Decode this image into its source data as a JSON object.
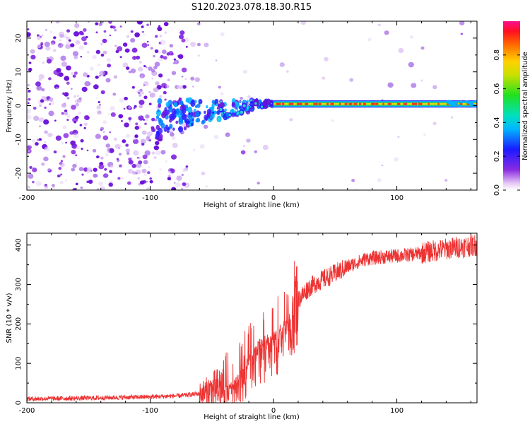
{
  "figure": {
    "title": "S120.2023.078.18.30.R15"
  },
  "chart_data": [
    {
      "type": "heatmap",
      "xlabel": "Height of straight line (km)",
      "ylabel": "Frequency (Hz)",
      "xlim": [
        -200,
        165
      ],
      "ylim": [
        -25,
        25
      ],
      "xticks": [
        -200,
        -100,
        0,
        100
      ],
      "yticks": [
        -20,
        -10,
        0,
        10,
        20
      ],
      "colorbar": {
        "label": "Normalized spectral amplitude",
        "range": [
          0,
          1
        ],
        "ticks": [
          "0.0",
          "0.2",
          "0.4",
          "0.6",
          "0.8"
        ],
        "colormap": "rainbow (white-violet-blue-cyan-green-yellow-red-magenta)"
      },
      "features": {
        "noise_region_km": [
          -200,
          -70
        ],
        "transition_region_km": [
          -100,
          0
        ],
        "carrier_line_start_km": 0,
        "carrier_frequency_hz": 0.5,
        "colors": {
          "noise": "#8a2be2",
          "carrier_core": "#ff3020",
          "carrier_edge": "#28c878"
        }
      }
    },
    {
      "type": "line",
      "xlabel": "Height of straight line (km)",
      "ylabel": "SNR (10 * v/v)",
      "xlim": [
        -200,
        165
      ],
      "ylim": [
        0,
        430
      ],
      "xticks": [
        -200,
        -100,
        0,
        100
      ],
      "yticks": [
        0,
        100,
        200,
        300,
        400
      ],
      "color": "#ee3333",
      "profile": {
        "x": [
          -200,
          -150,
          -100,
          -75,
          -55,
          -45,
          -35,
          -28,
          -20,
          -12,
          -5,
          0,
          10,
          20,
          28,
          35,
          45,
          60,
          75,
          90,
          110,
          130,
          150,
          165
        ],
        "y": [
          10,
          12,
          15,
          18,
          25,
          35,
          55,
          80,
          120,
          160,
          175,
          180,
          215,
          260,
          290,
          305,
          320,
          345,
          365,
          370,
          375,
          385,
          395,
          400
        ]
      }
    }
  ]
}
